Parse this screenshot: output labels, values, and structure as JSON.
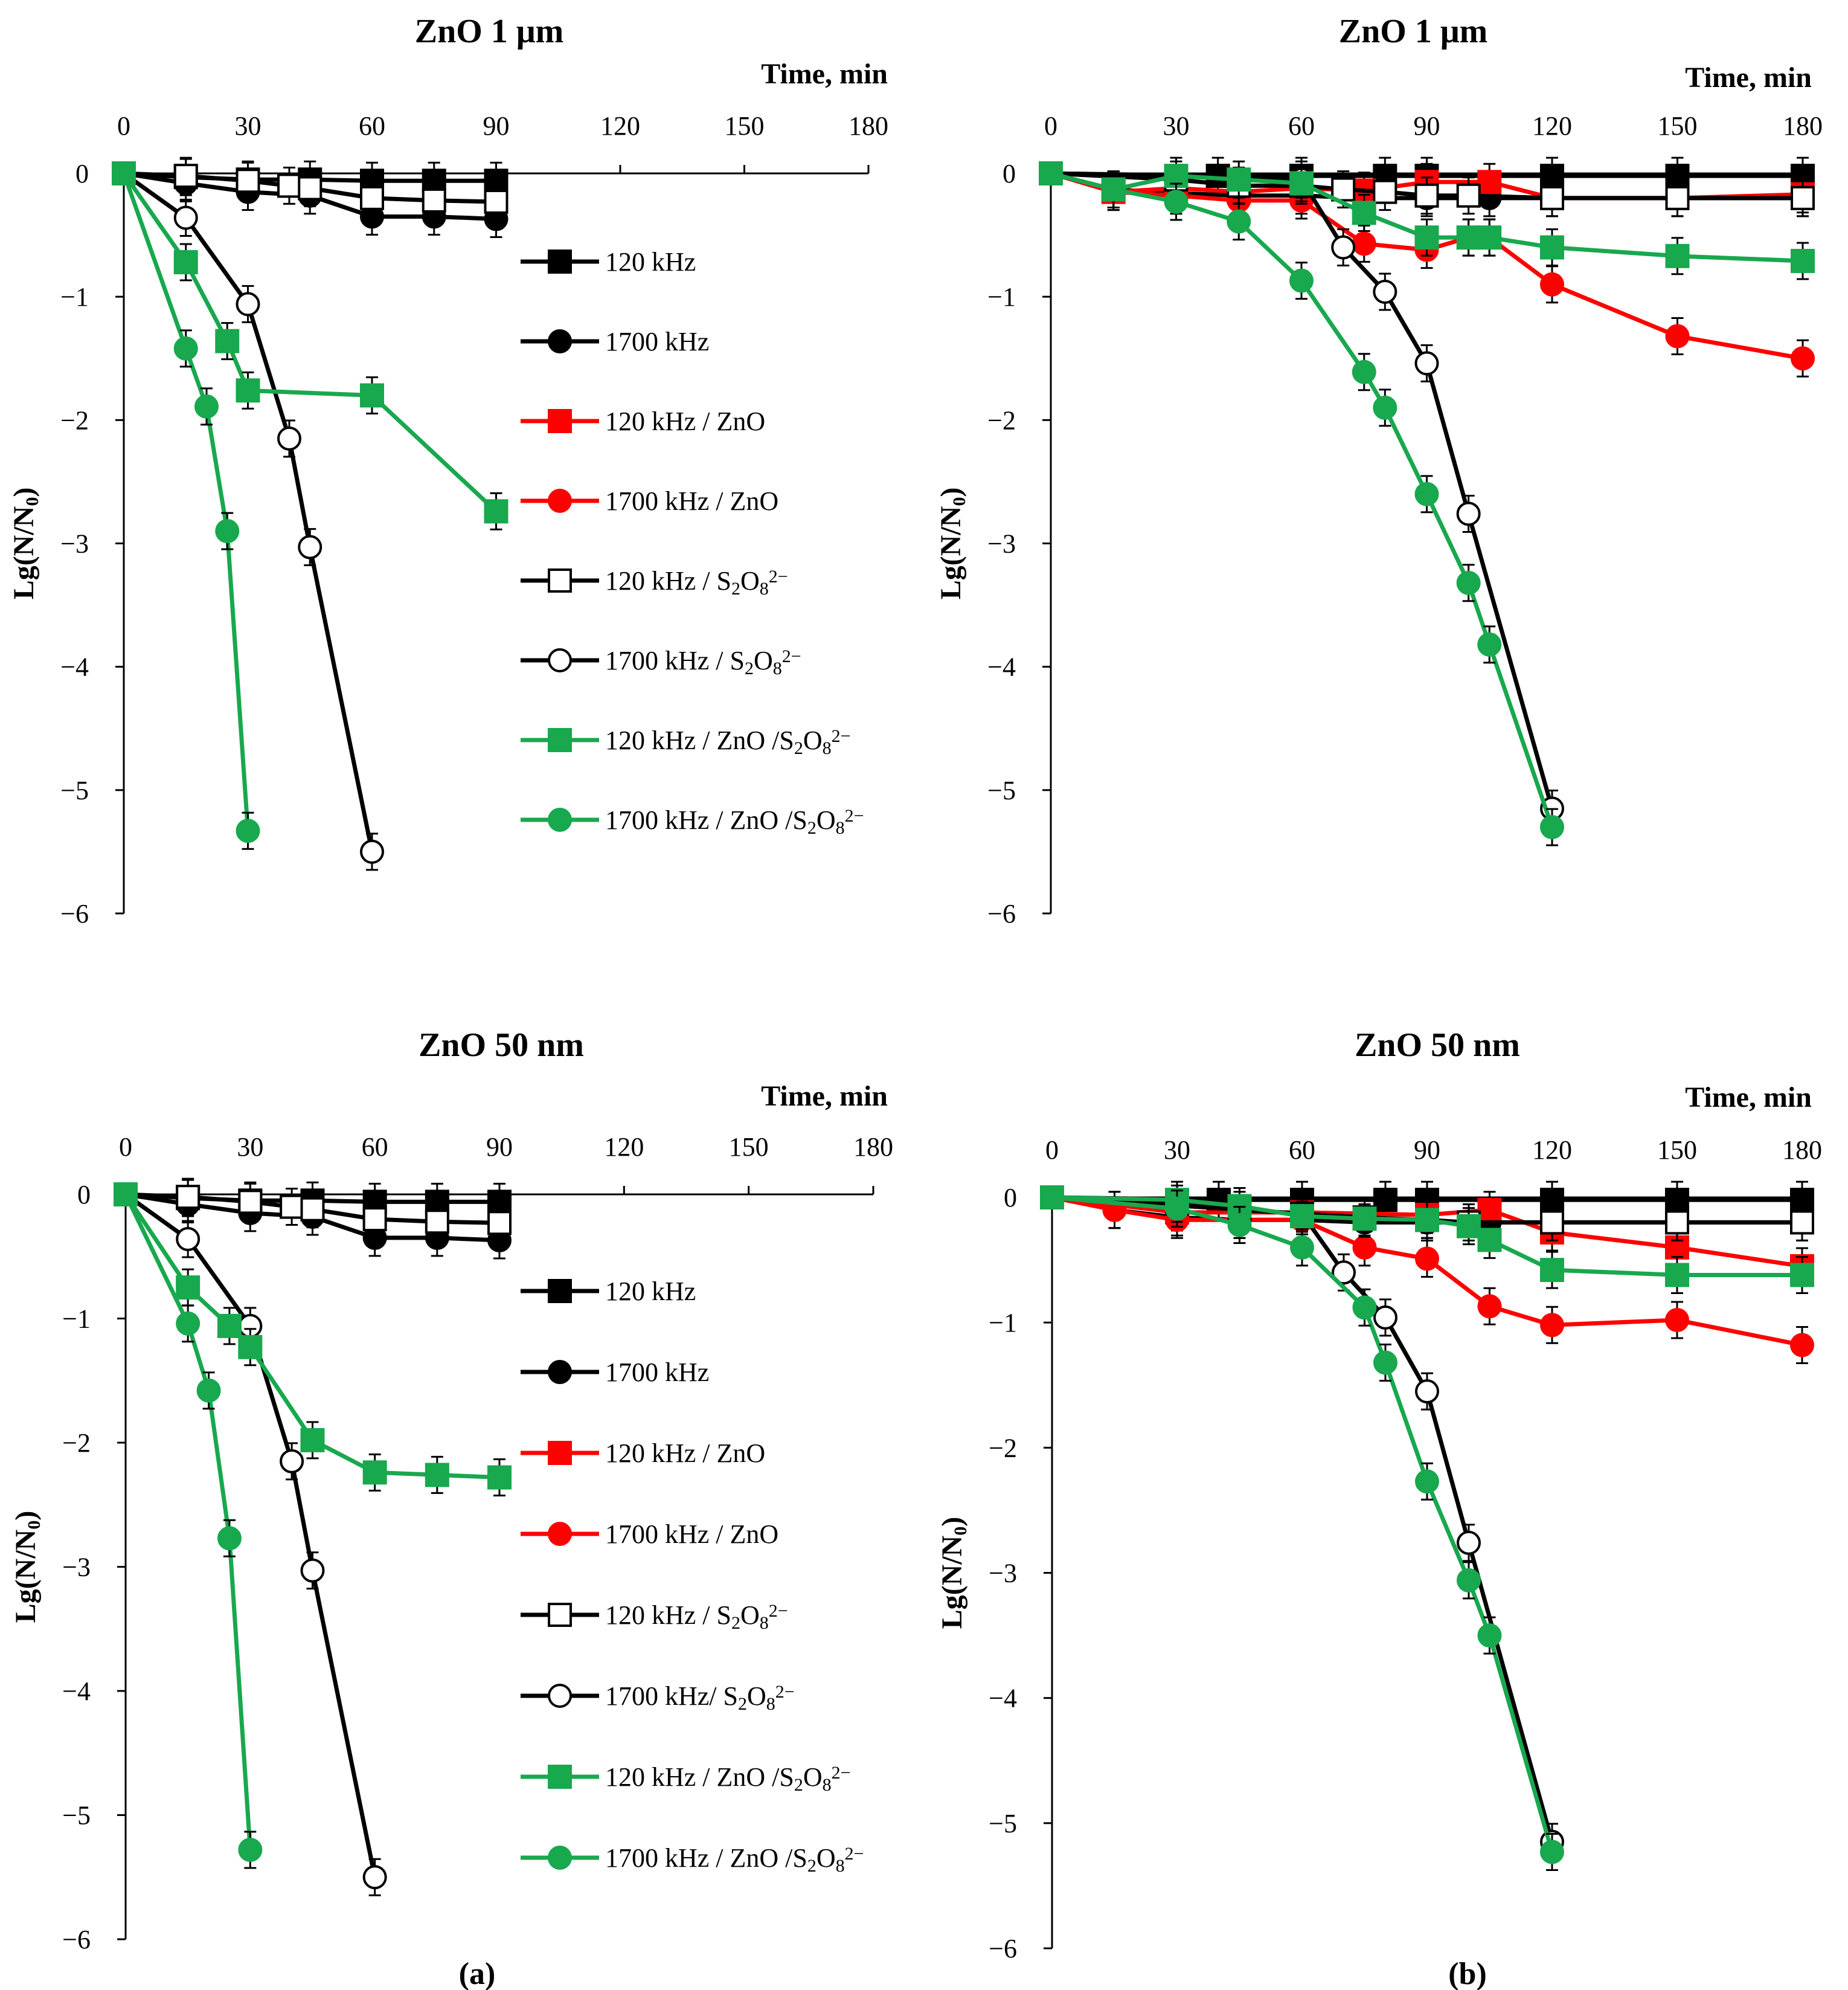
{
  "figure_captions": [
    "(a)",
    "(b)"
  ],
  "colors": {
    "c120": "#000000",
    "c1700": "#000000",
    "zno": "#ff0000",
    "s2o8": "#000000",
    "combo": "#18a84e"
  },
  "chart_data": [
    {
      "type": "line",
      "title": "ZnO 1 μm",
      "xlabel": "Time, min",
      "ylabel": "Lg(N/N0)",
      "xlim": [
        0,
        180
      ],
      "ylim": [
        -6,
        0
      ],
      "xticks": [
        "0",
        "30",
        "60",
        "90",
        "120",
        "150",
        "180"
      ],
      "yticks": [
        "0",
        "−1",
        "−2",
        "−3",
        "−4",
        "−5",
        "−6"
      ],
      "legend": true,
      "series": [
        {
          "name": "120 kHz",
          "color": "#000000",
          "marker": "square",
          "filled": true,
          "x": [
            0,
            15,
            30,
            45,
            60,
            75,
            90
          ],
          "y": [
            0,
            -0.03,
            -0.05,
            -0.05,
            -0.06,
            -0.06,
            -0.06
          ]
        },
        {
          "name": "1700 kHz",
          "color": "#000000",
          "marker": "circle",
          "filled": true,
          "x": [
            0,
            15,
            30,
            45,
            60,
            75,
            90
          ],
          "y": [
            0,
            -0.08,
            -0.15,
            -0.18,
            -0.35,
            -0.35,
            -0.37
          ]
        },
        {
          "name": "120 kHz / ZnO",
          "color": "#ff0000",
          "marker": "square",
          "filled": true,
          "x": [
            0
          ],
          "y": [
            0
          ]
        },
        {
          "name": "1700 kHz / ZnO",
          "color": "#ff0000",
          "marker": "circle",
          "filled": true,
          "x": [
            0
          ],
          "y": [
            0
          ]
        },
        {
          "name": "120 kHz / S₂O₈²⁻",
          "color": "#000000",
          "marker": "square",
          "filled": false,
          "x": [
            0,
            15,
            30,
            40,
            45,
            60,
            75,
            90
          ],
          "y": [
            0,
            -0.02,
            -0.06,
            -0.1,
            -0.12,
            -0.2,
            -0.22,
            -0.23
          ]
        },
        {
          "name": "1700 kHz / S₂O₈²⁻",
          "color": "#000000",
          "marker": "circle",
          "filled": false,
          "x": [
            0,
            15,
            30,
            40,
            45,
            60
          ],
          "y": [
            0,
            -0.36,
            -1.06,
            -2.15,
            -3.03,
            -5.5
          ]
        },
        {
          "name": "120 kHz / ZnO /S₂O₈²⁻",
          "color": "#18a84e",
          "marker": "square",
          "filled": true,
          "x": [
            0,
            15,
            25,
            30,
            60,
            90
          ],
          "y": [
            0,
            -0.72,
            -1.36,
            -1.76,
            -1.8,
            -2.74
          ]
        },
        {
          "name": "1700 kHz / ZnO /S₂O₈²⁻",
          "color": "#18a84e",
          "marker": "circle",
          "filled": true,
          "x": [
            0,
            15,
            20,
            25,
            30
          ],
          "y": [
            0,
            -1.42,
            -1.89,
            -2.9,
            -5.33
          ]
        }
      ]
    },
    {
      "type": "line",
      "title": "ZnO 1 μm",
      "xlabel": "Time, min",
      "ylabel": "Lg(N/N0)",
      "xlim": [
        0,
        180
      ],
      "ylim": [
        -6,
        0
      ],
      "xticks": [
        "0",
        "30",
        "60",
        "90",
        "120",
        "150",
        "180"
      ],
      "yticks": [
        "0",
        "−1",
        "−2",
        "−3",
        "−4",
        "−5",
        "−6"
      ],
      "legend": false,
      "series": [
        {
          "name": "120 kHz",
          "color": "#000000",
          "marker": "square",
          "filled": true,
          "x": [
            0,
            40,
            60,
            80,
            90,
            120,
            150,
            180
          ],
          "y": [
            0,
            -0.02,
            -0.02,
            -0.02,
            -0.02,
            -0.02,
            -0.02,
            -0.02
          ]
        },
        {
          "name": "1700 kHz",
          "color": "#000000",
          "marker": "circle",
          "filled": true,
          "x": [
            0,
            15,
            30,
            45,
            60,
            75,
            90,
            105,
            120,
            150,
            180
          ],
          "y": [
            0,
            -0.13,
            -0.16,
            -0.18,
            -0.18,
            -0.2,
            -0.2,
            -0.2,
            -0.2,
            -0.2,
            -0.2
          ]
        },
        {
          "name": "120 kHz / ZnO",
          "color": "#ff0000",
          "marker": "square",
          "filled": true,
          "x": [
            0,
            15,
            30,
            45,
            60,
            75,
            90,
            105,
            120,
            150,
            180
          ],
          "y": [
            0,
            -0.15,
            -0.12,
            -0.15,
            -0.12,
            -0.14,
            -0.07,
            -0.07,
            -0.2,
            -0.2,
            -0.17
          ]
        },
        {
          "name": "1700 kHz / ZnO",
          "color": "#ff0000",
          "marker": "circle",
          "filled": true,
          "x": [
            0,
            15,
            30,
            45,
            60,
            75,
            90,
            100,
            105,
            120,
            150,
            180
          ],
          "y": [
            0,
            -0.15,
            -0.18,
            -0.22,
            -0.22,
            -0.57,
            -0.62,
            -0.52,
            -0.52,
            -0.9,
            -1.32,
            -1.5
          ]
        },
        {
          "name": "120 kHz / S₂O₈²⁻",
          "color": "#000000",
          "marker": "square",
          "filled": false,
          "x": [
            0,
            30,
            45,
            60,
            70,
            80,
            90,
            100,
            120,
            150,
            180
          ],
          "y": [
            0,
            -0.05,
            -0.1,
            -0.1,
            -0.13,
            -0.15,
            -0.18,
            -0.18,
            -0.2,
            -0.2,
            -0.2
          ]
        },
        {
          "name": "1700 kHz / S₂O₈²⁻",
          "color": "#000000",
          "marker": "circle",
          "filled": false,
          "x": [
            0,
            60,
            70,
            80,
            90,
            100,
            120
          ],
          "y": [
            0,
            -0.05,
            -0.6,
            -0.96,
            -1.54,
            -2.76,
            -5.15
          ]
        },
        {
          "name": "120 kHz / ZnO /S₂O₈²⁻",
          "color": "#18a84e",
          "marker": "square",
          "filled": true,
          "x": [
            0,
            15,
            30,
            45,
            60,
            75,
            90,
            100,
            105,
            120,
            150,
            180
          ],
          "y": [
            0,
            -0.13,
            -0.02,
            -0.05,
            -0.08,
            -0.32,
            -0.52,
            -0.52,
            -0.52,
            -0.6,
            -0.67,
            -0.71
          ]
        },
        {
          "name": "1700 kHz / ZnO /S₂O₈²⁻",
          "color": "#18a84e",
          "marker": "circle",
          "filled": true,
          "x": [
            0,
            15,
            30,
            45,
            60,
            75,
            80,
            90,
            100,
            105,
            120
          ],
          "y": [
            0,
            -0.13,
            -0.23,
            -0.39,
            -0.87,
            -1.61,
            -1.9,
            -2.6,
            -3.32,
            -3.82,
            -5.3
          ]
        }
      ]
    },
    {
      "type": "line",
      "title": "ZnO 50 nm",
      "xlabel": "Time, min",
      "ylabel": "Lg(N/N0)",
      "xlim": [
        0,
        180
      ],
      "ylim": [
        -6,
        0
      ],
      "xticks": [
        "0",
        "30",
        "60",
        "90",
        "120",
        "150",
        "180"
      ],
      "yticks": [
        "0",
        "−1",
        "−2",
        "−3",
        "−4",
        "−5",
        "−6"
      ],
      "legend": true,
      "series": [
        {
          "name": "120 kHz",
          "color": "#000000",
          "marker": "square",
          "filled": true,
          "x": [
            0,
            15,
            30,
            45,
            60,
            75,
            90
          ],
          "y": [
            0,
            -0.03,
            -0.05,
            -0.05,
            -0.06,
            -0.06,
            -0.06
          ]
        },
        {
          "name": "1700 kHz",
          "color": "#000000",
          "marker": "circle",
          "filled": true,
          "x": [
            0,
            15,
            30,
            45,
            60,
            75,
            90
          ],
          "y": [
            0,
            -0.08,
            -0.15,
            -0.18,
            -0.35,
            -0.35,
            -0.37
          ]
        },
        {
          "name": "120 kHz / ZnO",
          "color": "#ff0000",
          "marker": "square",
          "filled": true,
          "x": [
            0
          ],
          "y": [
            0
          ]
        },
        {
          "name": "1700 kHz / ZnO",
          "color": "#ff0000",
          "marker": "circle",
          "filled": true,
          "x": [
            0
          ],
          "y": [
            0
          ]
        },
        {
          "name": "120 kHz / S₂O₈²⁻",
          "color": "#000000",
          "marker": "square",
          "filled": false,
          "x": [
            0,
            15,
            30,
            40,
            45,
            60,
            75,
            90
          ],
          "y": [
            0,
            -0.02,
            -0.06,
            -0.1,
            -0.12,
            -0.2,
            -0.22,
            -0.23
          ]
        },
        {
          "name": "1700 kHz/ S₂O₈²⁻",
          "color": "#000000",
          "marker": "circle",
          "filled": false,
          "x": [
            0,
            15,
            30,
            40,
            45,
            60
          ],
          "y": [
            0,
            -0.36,
            -1.06,
            -2.15,
            -3.03,
            -5.5
          ]
        },
        {
          "name": "120 kHz / ZnO /S₂O₈²⁻",
          "color": "#18a84e",
          "marker": "square",
          "filled": true,
          "x": [
            0,
            15,
            25,
            30,
            45,
            60,
            75,
            90
          ],
          "y": [
            0,
            -0.75,
            -1.06,
            -1.23,
            -1.98,
            -2.24,
            -2.26,
            -2.28
          ]
        },
        {
          "name": "1700 kHz / ZnO /S₂O₈²⁻",
          "color": "#18a84e",
          "marker": "circle",
          "filled": true,
          "x": [
            0,
            15,
            20,
            25,
            30
          ],
          "y": [
            0,
            -1.04,
            -1.58,
            -2.77,
            -5.28
          ]
        }
      ]
    },
    {
      "type": "line",
      "title": "ZnO 50 nm",
      "xlabel": "Time, min",
      "ylabel": "Lg(N/N0)",
      "xlim": [
        0,
        180
      ],
      "ylim": [
        -6,
        0
      ],
      "xticks": [
        "0",
        "30",
        "60",
        "90",
        "120",
        "150",
        "180"
      ],
      "yticks": [
        "0",
        "−1",
        "−2",
        "−3",
        "−4",
        "−5",
        "−6"
      ],
      "legend": false,
      "series": [
        {
          "name": "120 kHz",
          "color": "#000000",
          "marker": "square",
          "filled": true,
          "x": [
            0,
            40,
            60,
            80,
            90,
            120,
            150,
            180
          ],
          "y": [
            0,
            -0.02,
            -0.02,
            -0.02,
            -0.02,
            -0.02,
            -0.02,
            -0.02
          ]
        },
        {
          "name": "1700 kHz",
          "color": "#000000",
          "marker": "circle",
          "filled": true,
          "x": [
            0,
            15,
            30,
            45,
            60,
            75,
            90,
            105,
            120,
            150,
            180
          ],
          "y": [
            0,
            -0.1,
            -0.16,
            -0.18,
            -0.18,
            -0.2,
            -0.2,
            -0.2,
            -0.2,
            -0.2,
            -0.2
          ]
        },
        {
          "name": "120 kHz / ZnO",
          "color": "#ff0000",
          "marker": "square",
          "filled": true,
          "x": [
            0,
            30,
            60,
            90,
            105,
            120,
            150,
            180
          ],
          "y": [
            0,
            -0.12,
            -0.12,
            -0.14,
            -0.1,
            -0.28,
            -0.4,
            -0.55
          ]
        },
        {
          "name": "1700 kHz / ZnO",
          "color": "#ff0000",
          "marker": "circle",
          "filled": true,
          "x": [
            0,
            15,
            30,
            45,
            60,
            75,
            90,
            105,
            120,
            150,
            180
          ],
          "y": [
            0,
            -0.1,
            -0.18,
            -0.18,
            -0.18,
            -0.4,
            -0.49,
            -0.87,
            -1.02,
            -0.98,
            -1.18
          ]
        },
        {
          "name": "120 kHz / S₂O₈²⁻",
          "color": "#000000",
          "marker": "square",
          "filled": false,
          "x": [
            0,
            30,
            45,
            60,
            75,
            90,
            100,
            120,
            150,
            180
          ],
          "y": [
            0,
            -0.05,
            -0.1,
            -0.13,
            -0.16,
            -0.18,
            -0.2,
            -0.2,
            -0.2,
            -0.2
          ]
        },
        {
          "name": "1700 kHz/ S₂O₈²⁻",
          "color": "#000000",
          "marker": "circle",
          "filled": false,
          "x": [
            0,
            60,
            70,
            80,
            90,
            100,
            120
          ],
          "y": [
            0,
            -0.13,
            -0.6,
            -0.96,
            -1.55,
            -2.76,
            -5.15
          ]
        },
        {
          "name": "120 kHz / ZnO /S₂O₈²⁻",
          "color": "#18a84e",
          "marker": "square",
          "filled": true,
          "x": [
            0,
            30,
            45,
            60,
            75,
            90,
            100,
            105,
            120,
            150,
            180
          ],
          "y": [
            0,
            -0.02,
            -0.07,
            -0.15,
            -0.17,
            -0.18,
            -0.23,
            -0.34,
            -0.58,
            -0.62,
            -0.62
          ]
        },
        {
          "name": "1700 kHz / ZnO /S₂O₈²⁻",
          "color": "#18a84e",
          "marker": "circle",
          "filled": true,
          "x": [
            0,
            30,
            45,
            60,
            75,
            80,
            90,
            100,
            105,
            120
          ],
          "y": [
            0,
            -0.09,
            -0.22,
            -0.4,
            -0.88,
            -1.32,
            -2.27,
            -3.06,
            -3.5,
            -5.23
          ]
        }
      ]
    }
  ]
}
